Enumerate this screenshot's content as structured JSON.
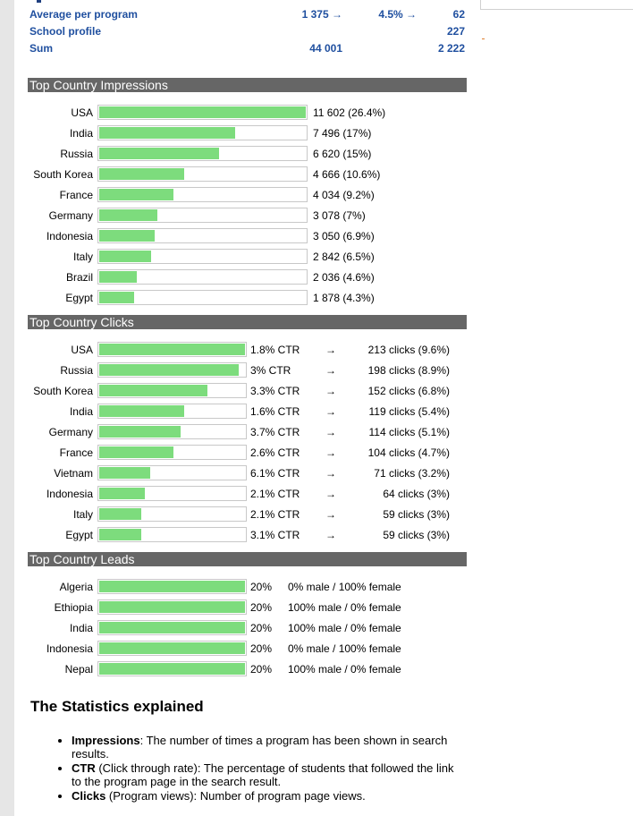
{
  "summary": [
    {
      "label": "Average per program",
      "impressions": "1 375 →",
      "ctr": "4.5% →",
      "clicks": "62"
    },
    {
      "label": "School profile",
      "impressions": "",
      "ctr": "",
      "clicks": "227"
    },
    {
      "label": "Sum",
      "impressions": "44 001",
      "ctr": "",
      "clicks": "2 222"
    }
  ],
  "impressions": {
    "title": "Top Country Impressions",
    "rows": [
      {
        "country": "USA",
        "value": "11 602 (26.4%)",
        "fraction": 1.0
      },
      {
        "country": "India",
        "value": "7 496 (17%)",
        "fraction": 0.66
      },
      {
        "country": "Russia",
        "value": "6 620 (15%)",
        "fraction": 0.58
      },
      {
        "country": "South Korea",
        "value": "4 666 (10.6%)",
        "fraction": 0.41
      },
      {
        "country": "France",
        "value": "4 034 (9.2%)",
        "fraction": 0.36
      },
      {
        "country": "Germany",
        "value": "3 078 (7%)",
        "fraction": 0.28
      },
      {
        "country": "Indonesia",
        "value": "3 050 (6.9%)",
        "fraction": 0.27
      },
      {
        "country": "Italy",
        "value": "2 842 (6.5%)",
        "fraction": 0.25
      },
      {
        "country": "Brazil",
        "value": "2 036 (4.6%)",
        "fraction": 0.18
      },
      {
        "country": "Egypt",
        "value": "1 878 (4.3%)",
        "fraction": 0.17
      }
    ]
  },
  "clicks": {
    "title": "Top Country Clicks",
    "arrow": "→",
    "rows": [
      {
        "country": "USA",
        "ctr": "1.8% CTR",
        "value": "213 clicks (9.6%)",
        "fraction": 1.0
      },
      {
        "country": "Russia",
        "ctr": "3% CTR",
        "value": "198 clicks (8.9%)",
        "fraction": 0.96
      },
      {
        "country": "South Korea",
        "ctr": "3.3% CTR",
        "value": "152 clicks (6.8%)",
        "fraction": 0.74
      },
      {
        "country": "India",
        "ctr": "1.6% CTR",
        "value": "119 clicks (5.4%)",
        "fraction": 0.58
      },
      {
        "country": "Germany",
        "ctr": "3.7% CTR",
        "value": "114 clicks (5.1%)",
        "fraction": 0.56
      },
      {
        "country": "France",
        "ctr": "2.6% CTR",
        "value": "104 clicks (4.7%)",
        "fraction": 0.51
      },
      {
        "country": "Vietnam",
        "ctr": "6.1% CTR",
        "value": "71 clicks (3.2%)",
        "fraction": 0.35
      },
      {
        "country": "Indonesia",
        "ctr": "2.1% CTR",
        "value": "64 clicks (3%)",
        "fraction": 0.31
      },
      {
        "country": "Italy",
        "ctr": "2.1% CTR",
        "value": "59 clicks (3%)",
        "fraction": 0.29
      },
      {
        "country": "Egypt",
        "ctr": "3.1% CTR",
        "value": "59 clicks (3%)",
        "fraction": 0.29
      }
    ]
  },
  "leads": {
    "title": "Top Country Leads",
    "rows": [
      {
        "country": "Algeria",
        "pct": "20%",
        "gender": "0% male / 100% female",
        "fraction": 1.0
      },
      {
        "country": "Ethiopia",
        "pct": "20%",
        "gender": "100% male / 0% female",
        "fraction": 1.0
      },
      {
        "country": "India",
        "pct": "20%",
        "gender": "100% male / 0% female",
        "fraction": 1.0
      },
      {
        "country": "Indonesia",
        "pct": "20%",
        "gender": "0% male / 100% female",
        "fraction": 1.0
      },
      {
        "country": "Nepal",
        "pct": "20%",
        "gender": "100% male / 0% female",
        "fraction": 1.0
      }
    ]
  },
  "explained": {
    "title": "The Statistics explained",
    "items": [
      {
        "term": "Impressions",
        "text": ": The number of times a program has been shown in search results."
      },
      {
        "term": "CTR",
        "text": " (Click through rate): The percentage of students that followed the link to the program page in the search result."
      },
      {
        "term": "Clicks",
        "text": " (Program views): Number of program page views."
      }
    ]
  },
  "colors": {
    "bar": "#7ddc7d",
    "header_bg": "#666666",
    "summary_text": "#1f4f9f"
  }
}
